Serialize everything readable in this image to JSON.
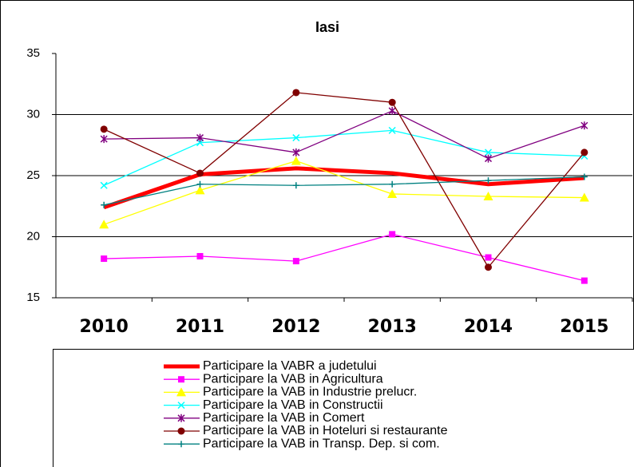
{
  "chart_data": {
    "type": "line",
    "title": "Iasi",
    "categories": [
      "2010",
      "2011",
      "2012",
      "2013",
      "2014",
      "2015"
    ],
    "ylim": [
      15,
      35
    ],
    "yticks": [
      15,
      20,
      25,
      30,
      35
    ],
    "grid": true,
    "series": [
      {
        "name": "Participare la VABR a judetului",
        "color": "#ff0000",
        "line_width": 5,
        "marker": "none",
        "values": [
          22.4,
          25.1,
          25.6,
          25.2,
          24.3,
          24.8
        ]
      },
      {
        "name": "Participare la VAB in Agricultura",
        "color": "#ff00ff",
        "line_width": 1.3,
        "marker": "square",
        "values": [
          18.2,
          18.4,
          18.0,
          20.2,
          18.3,
          16.4
        ]
      },
      {
        "name": "Participare la VAB in Industrie prelucr.",
        "color": "#ffff00",
        "line_width": 1.3,
        "marker": "triangle",
        "values": [
          21.0,
          23.8,
          26.2,
          23.5,
          23.3,
          23.2
        ]
      },
      {
        "name": "Participare la VAB in Constructii",
        "color": "#00ffff",
        "line_width": 1.3,
        "marker": "x",
        "values": [
          24.2,
          27.7,
          28.1,
          28.7,
          26.9,
          26.6
        ]
      },
      {
        "name": "Participare la VAB in Comert",
        "color": "#800080",
        "line_width": 1.3,
        "marker": "star",
        "values": [
          28.0,
          28.1,
          26.9,
          30.3,
          26.4,
          29.1
        ]
      },
      {
        "name": "Participare la VAB in Hoteluri si restaurante",
        "color": "#800000",
        "line_width": 1.3,
        "marker": "circle",
        "values": [
          28.8,
          25.2,
          31.8,
          31.0,
          17.5,
          26.9
        ]
      },
      {
        "name": "Participare la VAB in Transp. Dep. si com.",
        "color": "#008080",
        "line_width": 1.3,
        "marker": "plus",
        "values": [
          22.6,
          24.3,
          24.2,
          24.3,
          24.6,
          24.9
        ]
      }
    ]
  }
}
